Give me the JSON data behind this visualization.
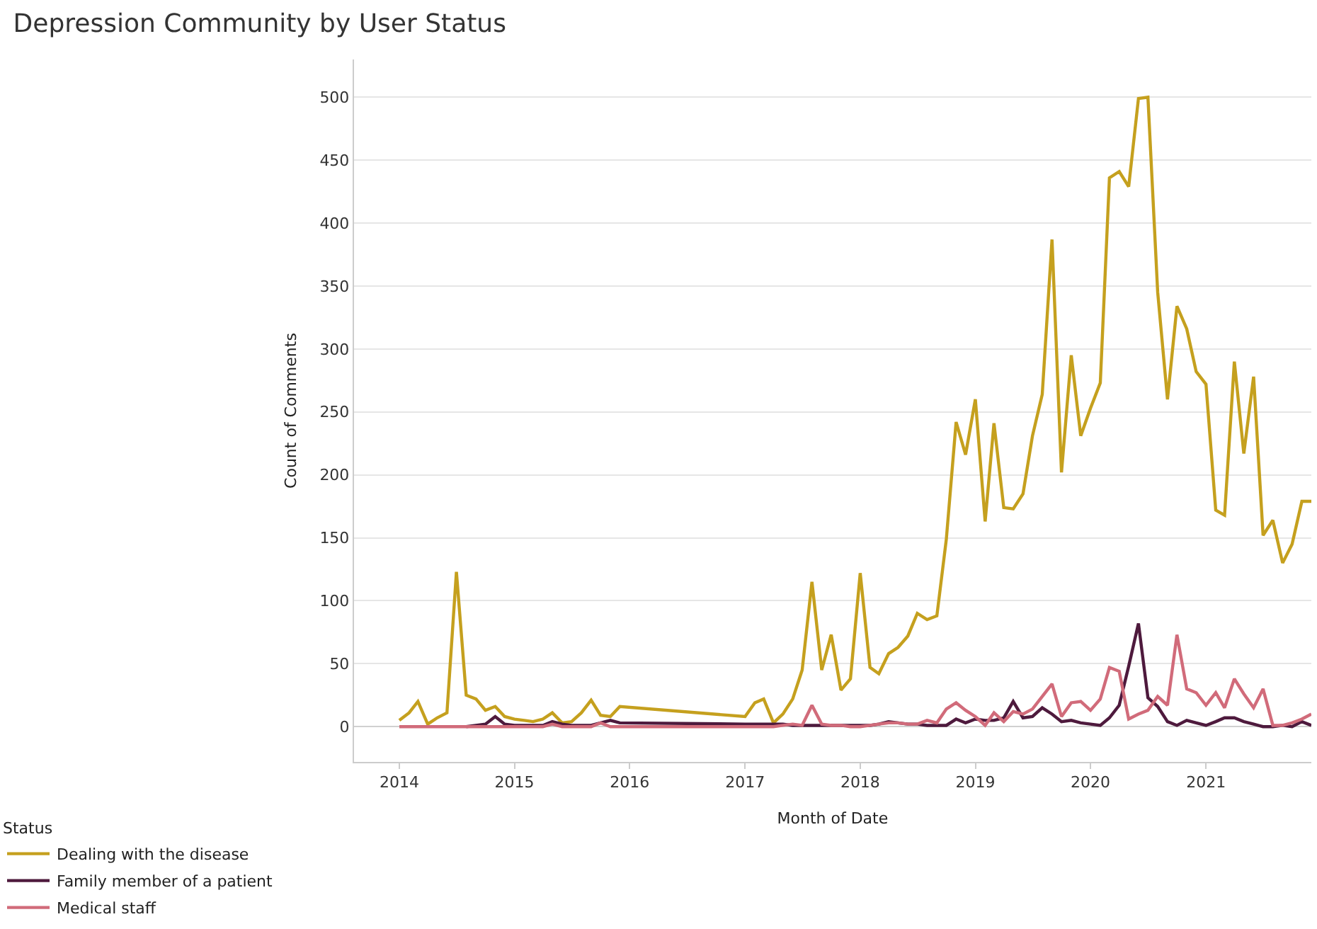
{
  "chart_data": {
    "type": "line",
    "title": "Depression Community by User Status",
    "xlabel": "Month of Date",
    "ylabel": "Count of Comments",
    "legend_title": "Status",
    "legend": "bottom left",
    "grid": "y",
    "xlim": [
      "2013-08-10",
      "2021-12-01"
    ],
    "xticks": [
      "2014",
      "2015",
      "2016",
      "2017",
      "2018",
      "2019",
      "2020",
      "2021"
    ],
    "ylim": [
      -28,
      530
    ],
    "yticks": [
      0,
      50,
      100,
      150,
      200,
      250,
      300,
      350,
      400,
      450,
      500
    ],
    "series": [
      {
        "name": "Dealing with the disease",
        "color": "#c5a01e",
        "x": [
          "2014-01",
          "2014-02",
          "2014-03",
          "2014-04",
          "2014-05",
          "2014-06",
          "2014-07",
          "2014-08",
          "2014-09",
          "2014-10",
          "2014-11",
          "2014-12",
          "2015-01",
          "2015-02",
          "2015-03",
          "2015-04",
          "2015-05",
          "2015-06",
          "2015-07",
          "2015-08",
          "2015-09",
          "2015-10",
          "2015-11",
          "2015-12",
          "2017-01",
          "2017-02",
          "2017-03",
          "2017-04",
          "2017-05",
          "2017-06",
          "2017-07",
          "2017-08",
          "2017-09",
          "2017-10",
          "2017-11",
          "2017-12",
          "2018-01",
          "2018-02",
          "2018-03",
          "2018-04",
          "2018-05",
          "2018-06",
          "2018-07",
          "2018-08",
          "2018-09",
          "2018-10",
          "2018-11",
          "2018-12",
          "2019-01",
          "2019-02",
          "2019-03",
          "2019-04",
          "2019-05",
          "2019-06",
          "2019-07",
          "2019-08",
          "2019-09",
          "2019-10",
          "2019-11",
          "2019-12",
          "2020-01",
          "2020-02",
          "2020-03",
          "2020-04",
          "2020-05",
          "2020-06",
          "2020-07",
          "2020-08",
          "2020-09",
          "2020-10",
          "2020-11",
          "2020-12",
          "2021-01",
          "2021-02",
          "2021-03",
          "2021-04",
          "2021-05",
          "2021-06",
          "2021-07",
          "2021-08",
          "2021-09",
          "2021-10",
          "2021-11",
          "2021-12"
        ],
        "values": [
          5,
          11,
          20,
          2,
          7,
          11,
          123,
          25,
          22,
          13,
          16,
          8,
          6,
          5,
          4,
          6,
          11,
          3,
          4,
          11,
          21,
          9,
          8,
          16,
          8,
          19,
          22,
          3,
          10,
          22,
          45,
          115,
          45,
          73,
          29,
          38,
          122,
          47,
          42,
          58,
          63,
          72,
          90,
          85,
          88,
          149,
          242,
          216,
          260,
          163,
          241,
          174,
          173,
          185,
          231,
          264,
          387,
          202,
          295,
          231,
          253,
          273,
          436,
          441,
          429,
          499,
          500,
          345,
          260,
          334,
          316,
          282,
          272,
          172,
          168,
          290,
          217,
          278,
          152,
          164,
          130,
          145,
          179,
          179
        ]
      },
      {
        "name": "Family member of a patient",
        "color": "#4e1a3d",
        "x": [
          "2014-08",
          "2014-09",
          "2014-10",
          "2014-11",
          "2014-12",
          "2015-01",
          "2015-02",
          "2015-03",
          "2015-04",
          "2015-05",
          "2015-06",
          "2015-07",
          "2015-08",
          "2015-09",
          "2015-10",
          "2015-11",
          "2015-12",
          "2017-01",
          "2017-02",
          "2017-03",
          "2017-04",
          "2017-05",
          "2017-06",
          "2017-07",
          "2017-08",
          "2017-09",
          "2017-10",
          "2017-11",
          "2017-12",
          "2018-01",
          "2018-02",
          "2018-03",
          "2018-04",
          "2018-05",
          "2018-06",
          "2018-07",
          "2018-08",
          "2018-09",
          "2018-10",
          "2018-11",
          "2018-12",
          "2019-01",
          "2019-02",
          "2019-03",
          "2019-04",
          "2019-05",
          "2019-06",
          "2019-07",
          "2019-08",
          "2019-09",
          "2019-10",
          "2019-11",
          "2019-12",
          "2020-01",
          "2020-02",
          "2020-03",
          "2020-04",
          "2020-05",
          "2020-06",
          "2020-07",
          "2020-08",
          "2020-09",
          "2020-10",
          "2020-11",
          "2020-12",
          "2021-01",
          "2021-02",
          "2021-03",
          "2021-04",
          "2021-05",
          "2021-06",
          "2021-07",
          "2021-08",
          "2021-09",
          "2021-10",
          "2021-11",
          "2021-12"
        ],
        "values": [
          0,
          1,
          2,
          8,
          2,
          1,
          1,
          1,
          1,
          4,
          2,
          1,
          1,
          1,
          3,
          5,
          3,
          2,
          2,
          2,
          2,
          2,
          1,
          1,
          1,
          1,
          1,
          1,
          1,
          1,
          1,
          2,
          4,
          3,
          2,
          2,
          1,
          1,
          1,
          6,
          3,
          6,
          5,
          5,
          7,
          20,
          7,
          8,
          15,
          10,
          4,
          5,
          3,
          2,
          1,
          7,
          17,
          48,
          82,
          23,
          16,
          4,
          1,
          5,
          3,
          1,
          4,
          7,
          7,
          4,
          2,
          0,
          0,
          1,
          0,
          4,
          1
        ]
      },
      {
        "name": "Medical staff",
        "color": "#d16b7a",
        "x": [
          "2014-01",
          "2014-02",
          "2014-03",
          "2014-04",
          "2014-05",
          "2014-06",
          "2014-07",
          "2014-08",
          "2014-09",
          "2014-10",
          "2014-11",
          "2014-12",
          "2015-01",
          "2015-02",
          "2015-03",
          "2015-04",
          "2015-05",
          "2015-06",
          "2015-07",
          "2015-08",
          "2015-09",
          "2015-10",
          "2015-11",
          "2015-12",
          "2017-01",
          "2017-02",
          "2017-03",
          "2017-04",
          "2017-05",
          "2017-06",
          "2017-07",
          "2017-08",
          "2017-09",
          "2017-10",
          "2017-11",
          "2017-12",
          "2018-01",
          "2018-02",
          "2018-03",
          "2018-04",
          "2018-05",
          "2018-06",
          "2018-07",
          "2018-08",
          "2018-09",
          "2018-10",
          "2018-11",
          "2018-12",
          "2019-01",
          "2019-02",
          "2019-03",
          "2019-04",
          "2019-05",
          "2019-06",
          "2019-07",
          "2019-08",
          "2019-09",
          "2019-10",
          "2019-11",
          "2019-12",
          "2020-01",
          "2020-02",
          "2020-03",
          "2020-04",
          "2020-05",
          "2020-06",
          "2020-07",
          "2020-08",
          "2020-09",
          "2020-10",
          "2020-11",
          "2020-12",
          "2021-01",
          "2021-02",
          "2021-03",
          "2021-04",
          "2021-05",
          "2021-06",
          "2021-07",
          "2021-08",
          "2021-09",
          "2021-10",
          "2021-11",
          "2021-12"
        ],
        "values": [
          0,
          0,
          0,
          0,
          0,
          0,
          0,
          0,
          0,
          0,
          0,
          0,
          0,
          0,
          0,
          0,
          2,
          0,
          0,
          0,
          0,
          3,
          0,
          0,
          0,
          0,
          0,
          0,
          1,
          2,
          1,
          17,
          2,
          1,
          1,
          0,
          0,
          1,
          2,
          3,
          3,
          2,
          2,
          5,
          3,
          14,
          19,
          13,
          8,
          1,
          11,
          4,
          12,
          10,
          14,
          24,
          34,
          8,
          19,
          20,
          13,
          22,
          47,
          44,
          6,
          10,
          13,
          24,
          17,
          73,
          30,
          27,
          17,
          27,
          15,
          38,
          26,
          15,
          30,
          1,
          1,
          3,
          6,
          10
        ]
      }
    ]
  }
}
